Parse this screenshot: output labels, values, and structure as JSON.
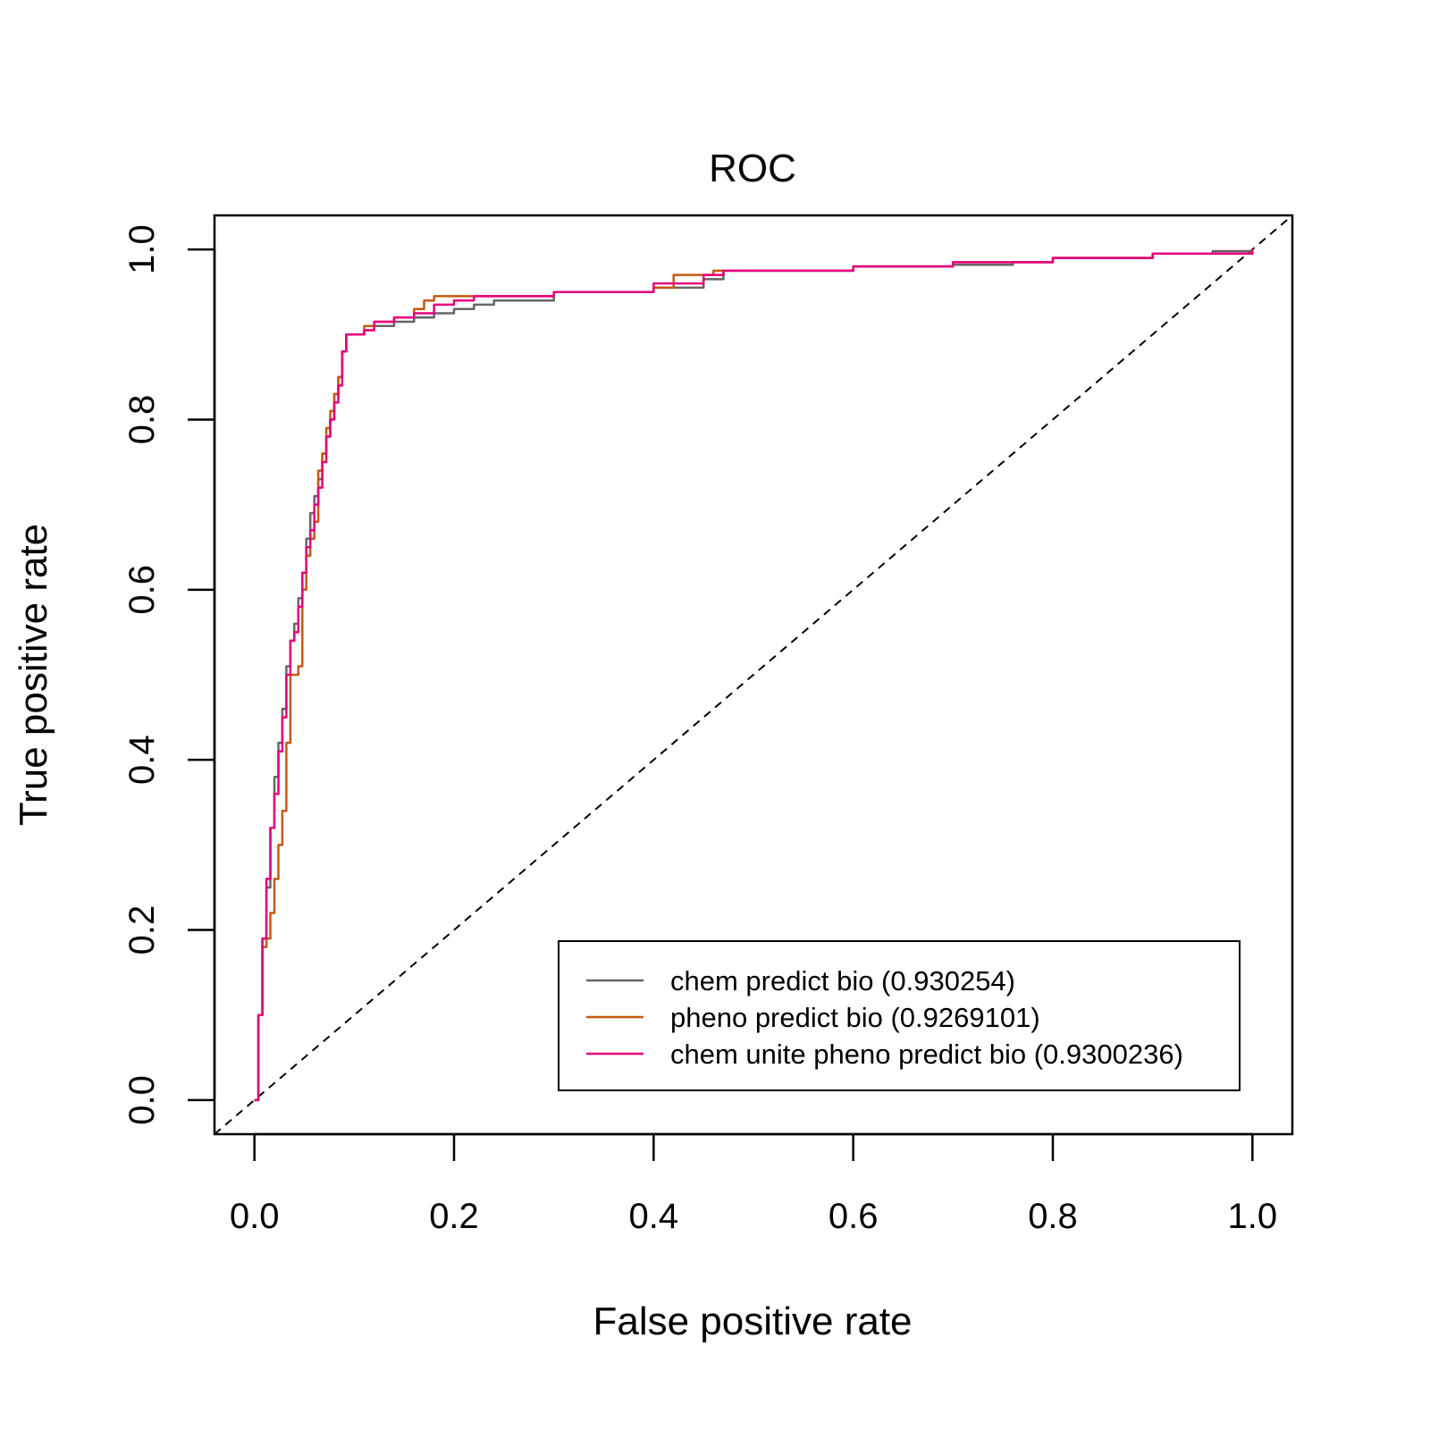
{
  "chart_data": {
    "type": "line",
    "title": "ROC",
    "xlabel": "False positive rate",
    "ylabel": "True positive rate",
    "xlim": [
      -0.04,
      1.04
    ],
    "ylim": [
      -0.04,
      1.04
    ],
    "x_ticks": [
      "0.0",
      "0.2",
      "0.4",
      "0.6",
      "0.8",
      "1.0"
    ],
    "y_ticks": [
      "0.0",
      "0.2",
      "0.4",
      "0.6",
      "0.8",
      "1.0"
    ],
    "grid": false,
    "legend_position": "bottom-right",
    "reference_line": {
      "x": [
        0,
        1
      ],
      "y": [
        0,
        1
      ],
      "style": "dashed",
      "color": "#000000"
    },
    "series": [
      {
        "name": "chem predict bio (0.930254)",
        "color": "#666666",
        "x": [
          0.0,
          0.004,
          0.008,
          0.012,
          0.016,
          0.02,
          0.024,
          0.028,
          0.032,
          0.036,
          0.04,
          0.044,
          0.048,
          0.052,
          0.056,
          0.06,
          0.064,
          0.068,
          0.072,
          0.076,
          0.08,
          0.084,
          0.088,
          0.092,
          0.096,
          0.1,
          0.11,
          0.12,
          0.14,
          0.16,
          0.18,
          0.2,
          0.22,
          0.24,
          0.3,
          0.35,
          0.4,
          0.45,
          0.47,
          0.5,
          0.6,
          0.7,
          0.76,
          0.8,
          0.9,
          0.96,
          1.0
        ],
        "y": [
          0.0,
          0.1,
          0.19,
          0.25,
          0.32,
          0.38,
          0.42,
          0.46,
          0.51,
          0.54,
          0.56,
          0.59,
          0.62,
          0.66,
          0.69,
          0.71,
          0.73,
          0.76,
          0.78,
          0.8,
          0.83,
          0.85,
          0.88,
          0.9,
          0.9,
          0.9,
          0.905,
          0.91,
          0.915,
          0.92,
          0.925,
          0.93,
          0.935,
          0.94,
          0.95,
          0.95,
          0.955,
          0.965,
          0.975,
          0.975,
          0.98,
          0.982,
          0.985,
          0.99,
          0.995,
          0.998,
          1.0
        ]
      },
      {
        "name": "pheno predict bio (0.9269101)",
        "color": "#C55A11",
        "x": [
          0.0,
          0.004,
          0.008,
          0.012,
          0.016,
          0.02,
          0.024,
          0.028,
          0.032,
          0.036,
          0.04,
          0.044,
          0.048,
          0.052,
          0.056,
          0.06,
          0.064,
          0.068,
          0.072,
          0.076,
          0.08,
          0.084,
          0.088,
          0.092,
          0.096,
          0.1,
          0.11,
          0.12,
          0.14,
          0.16,
          0.17,
          0.18,
          0.2,
          0.3,
          0.4,
          0.42,
          0.46,
          0.5,
          0.6,
          0.7,
          0.8,
          0.9,
          1.0
        ],
        "y": [
          0.0,
          0.1,
          0.18,
          0.19,
          0.22,
          0.26,
          0.3,
          0.34,
          0.42,
          0.5,
          0.5,
          0.51,
          0.6,
          0.64,
          0.66,
          0.68,
          0.74,
          0.76,
          0.79,
          0.81,
          0.83,
          0.85,
          0.88,
          0.9,
          0.9,
          0.9,
          0.91,
          0.915,
          0.92,
          0.93,
          0.94,
          0.945,
          0.945,
          0.95,
          0.955,
          0.97,
          0.975,
          0.975,
          0.98,
          0.985,
          0.99,
          0.995,
          1.0
        ]
      },
      {
        "name": "chem unite pheno predict bio (0.9300236)",
        "color": "#E6007E",
        "x": [
          0.0,
          0.004,
          0.008,
          0.012,
          0.016,
          0.02,
          0.024,
          0.028,
          0.032,
          0.036,
          0.04,
          0.044,
          0.048,
          0.052,
          0.056,
          0.06,
          0.064,
          0.068,
          0.072,
          0.076,
          0.08,
          0.084,
          0.088,
          0.092,
          0.096,
          0.1,
          0.11,
          0.12,
          0.14,
          0.16,
          0.18,
          0.2,
          0.22,
          0.3,
          0.4,
          0.45,
          0.47,
          0.5,
          0.6,
          0.7,
          0.8,
          0.9,
          1.0
        ],
        "y": [
          0.0,
          0.1,
          0.19,
          0.26,
          0.32,
          0.36,
          0.41,
          0.45,
          0.5,
          0.54,
          0.55,
          0.58,
          0.62,
          0.65,
          0.67,
          0.7,
          0.72,
          0.75,
          0.78,
          0.8,
          0.82,
          0.84,
          0.88,
          0.9,
          0.9,
          0.9,
          0.905,
          0.915,
          0.92,
          0.925,
          0.935,
          0.94,
          0.945,
          0.95,
          0.96,
          0.97,
          0.975,
          0.975,
          0.98,
          0.985,
          0.99,
          0.995,
          1.0
        ]
      }
    ]
  }
}
